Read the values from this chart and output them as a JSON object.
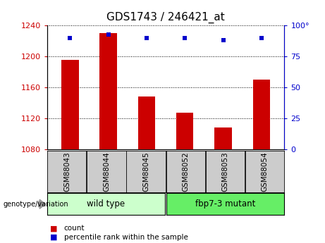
{
  "title": "GDS1743 / 246421_at",
  "categories": [
    "GSM88043",
    "GSM88044",
    "GSM88045",
    "GSM88052",
    "GSM88053",
    "GSM88054"
  ],
  "count_values": [
    1196,
    1230,
    1148,
    1127,
    1108,
    1170
  ],
  "percentile_values": [
    90,
    93,
    90,
    90,
    88,
    90
  ],
  "ylim_left": [
    1080,
    1240
  ],
  "ylim_right": [
    0,
    100
  ],
  "yticks_left": [
    1080,
    1120,
    1160,
    1200,
    1240
  ],
  "yticks_right": [
    0,
    25,
    50,
    75,
    100
  ],
  "bar_color": "#cc0000",
  "dot_color": "#0000cc",
  "bar_width": 0.45,
  "group1_label": "wild type",
  "group2_label": "fbp7-3 mutant",
  "group_box_color1": "#ccffcc",
  "group_box_color2": "#66ee66",
  "tick_label_area_color": "#cccccc",
  "legend_count_color": "#cc0000",
  "legend_percentile_color": "#0000cc",
  "legend_count_label": "count",
  "legend_percentile_label": "percentile rank within the sample",
  "genotype_label": "genotype/variation",
  "left_tick_color": "#cc0000",
  "right_tick_color": "#0000cc",
  "title_fontsize": 11,
  "tick_fontsize": 8,
  "label_fontsize": 8.5,
  "cat_fontsize": 7.5
}
